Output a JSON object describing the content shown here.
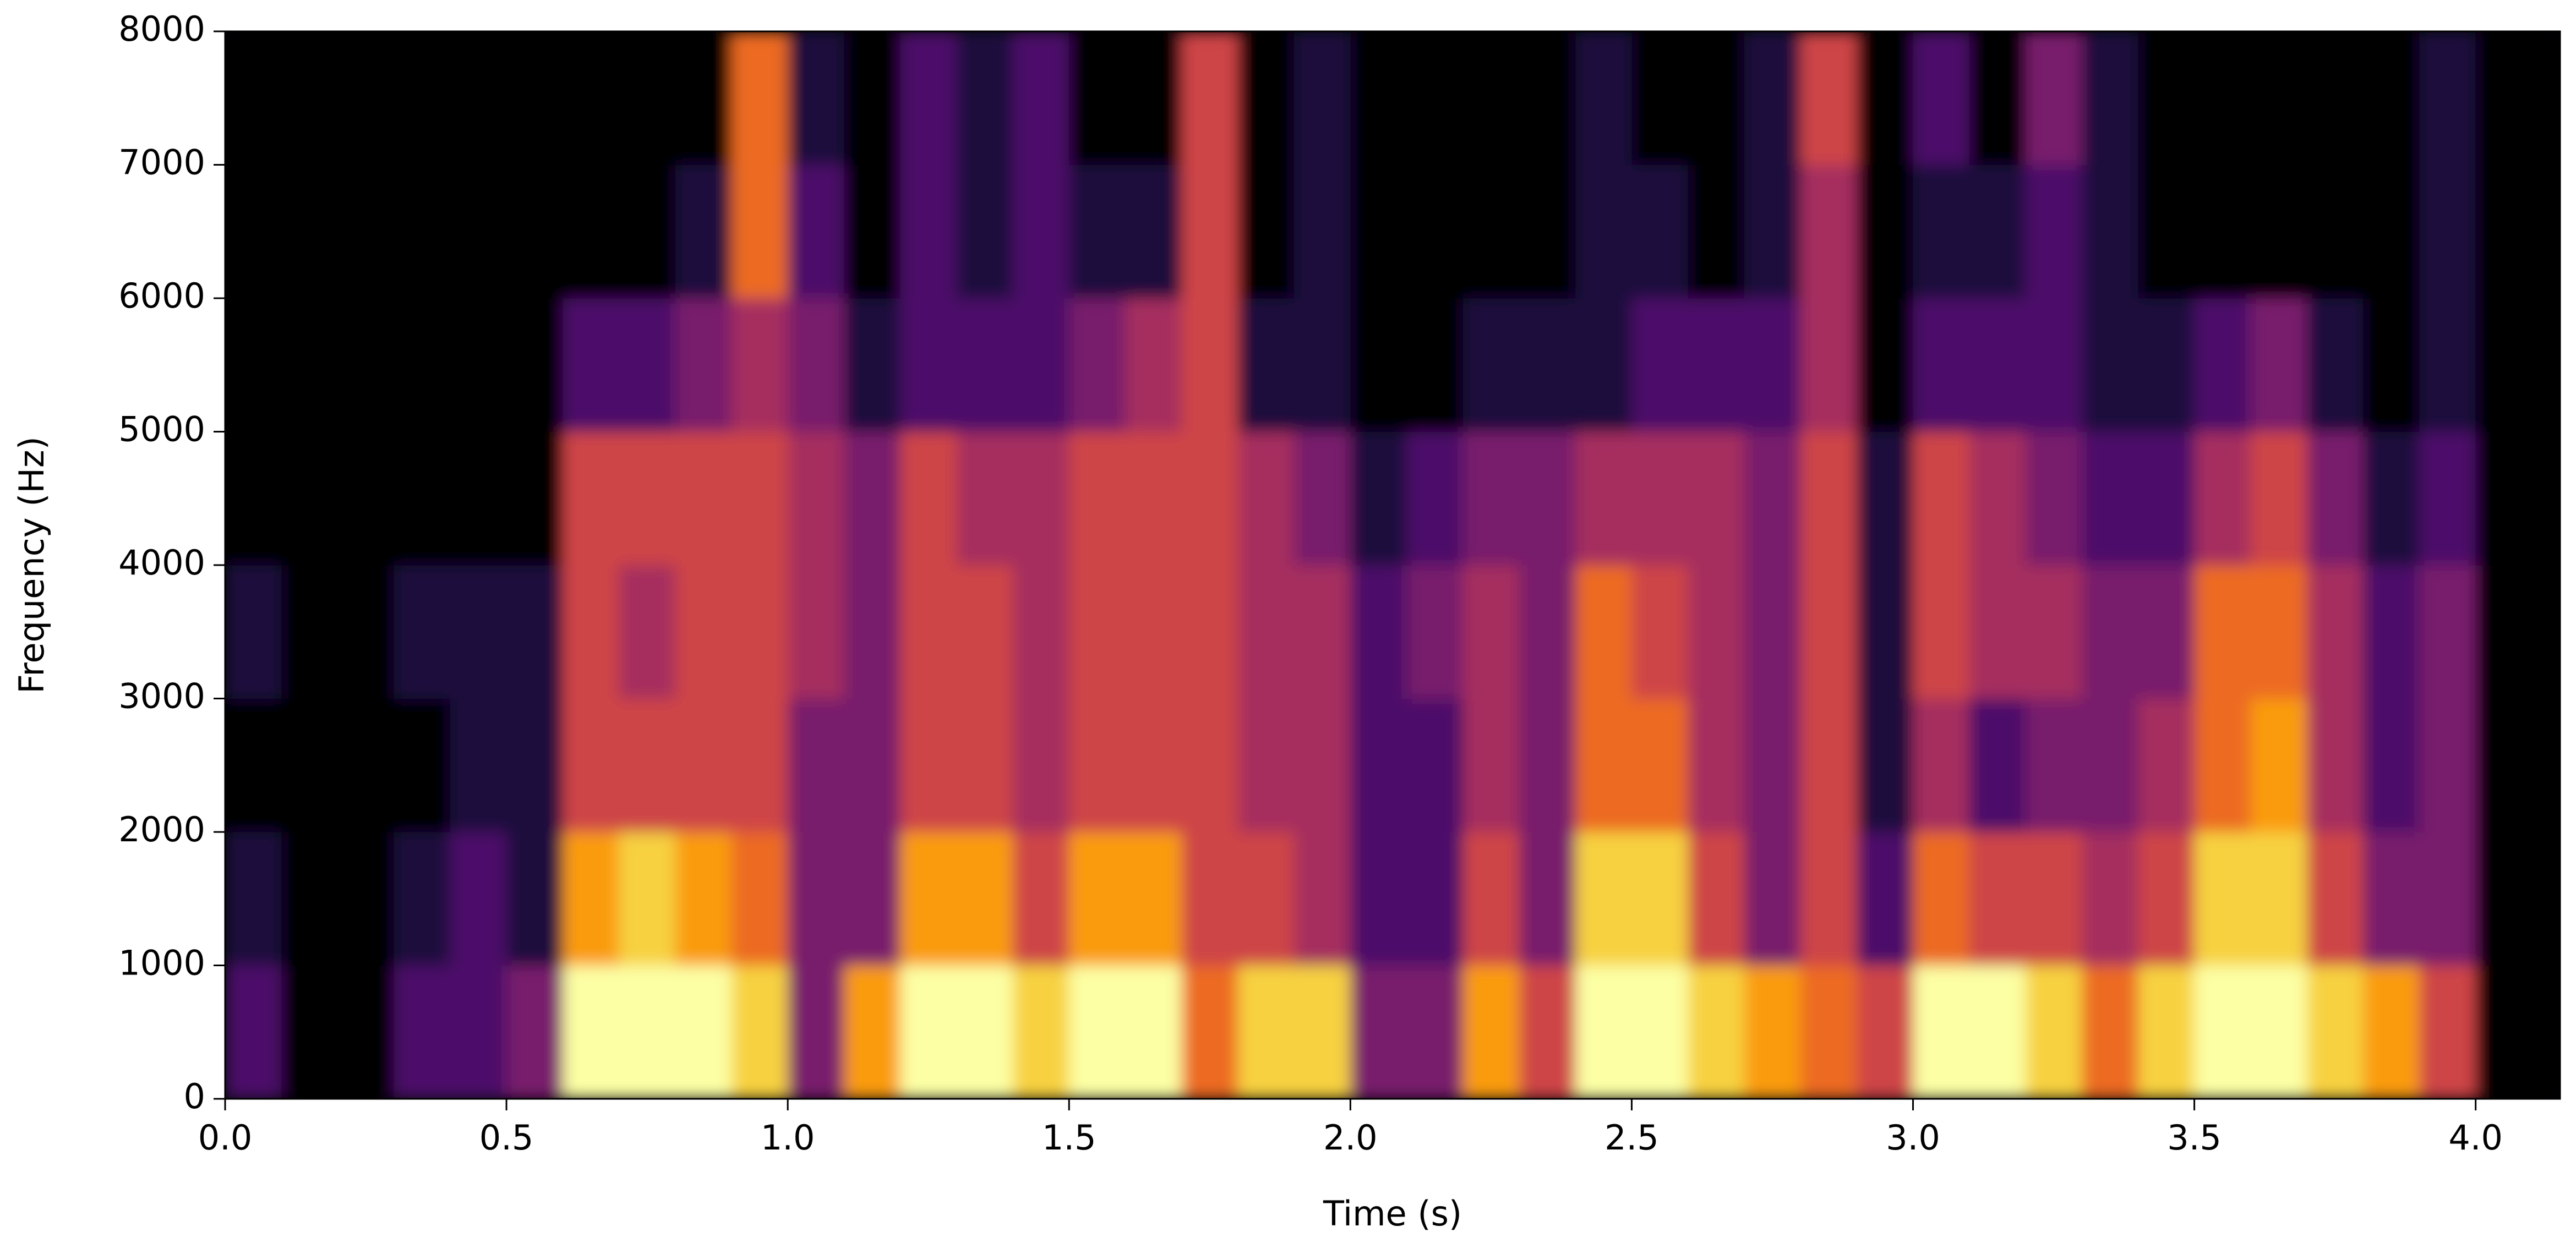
{
  "chart_data": {
    "type": "heatmap",
    "xlabel": "Time (s)",
    "ylabel": "Frequency (Hz)",
    "colormap": "inferno",
    "zlim": [
      0,
      9
    ],
    "xlim": [
      0,
      4.15
    ],
    "ylim": [
      0,
      8000
    ],
    "xticks": [
      {
        "value": 0,
        "label": "0.0"
      },
      0.5,
      {
        "value": 1,
        "label": "1.0"
      },
      1.5,
      {
        "value": 2,
        "label": "2.0"
      },
      2.5,
      {
        "value": 3,
        "label": "3.0"
      },
      3.5,
      {
        "value": 4,
        "label": "4.0"
      }
    ],
    "yticks": [
      0,
      1000,
      2000,
      3000,
      4000,
      5000,
      6000,
      7000,
      8000
    ],
    "xbins": [
      0,
      0.1,
      0.2,
      0.3,
      0.4,
      0.5,
      0.6,
      0.7,
      0.8,
      0.9,
      1.0,
      1.1,
      1.2,
      1.3,
      1.4,
      1.5,
      1.6,
      1.7,
      1.8,
      1.9,
      2.0,
      2.1,
      2.2,
      2.3,
      2.4,
      2.5,
      2.6,
      2.7,
      2.8,
      2.9,
      3.0,
      3.1,
      3.2,
      3.3,
      3.4,
      3.5,
      3.6,
      3.7,
      3.8,
      3.9,
      4.0,
      4.1,
      4.15
    ],
    "ybins": [
      0,
      1000,
      2000,
      3000,
      4000,
      5000,
      6000,
      7000,
      8000
    ],
    "z": [
      [
        2,
        0,
        0,
        2,
        2,
        3,
        9,
        9,
        9,
        8,
        3,
        7,
        9,
        9,
        8,
        9,
        9,
        6,
        8,
        8,
        3,
        3,
        7,
        5,
        9,
        9,
        8,
        7,
        6,
        5,
        9,
        9,
        8,
        6,
        8,
        9,
        9,
        8,
        7,
        5,
        0,
        0
      ],
      [
        1,
        0,
        0,
        1,
        2,
        1,
        7,
        8,
        7,
        6,
        3,
        3,
        7,
        7,
        5,
        7,
        7,
        5,
        5,
        4,
        2,
        2,
        5,
        3,
        8,
        8,
        5,
        3,
        5,
        2,
        6,
        5,
        5,
        4,
        5,
        8,
        8,
        5,
        3,
        3,
        0,
        0
      ],
      [
        0,
        0,
        0,
        0,
        1,
        1,
        5,
        5,
        5,
        5,
        3,
        3,
        5,
        5,
        4,
        5,
        5,
        5,
        4,
        4,
        2,
        2,
        4,
        3,
        6,
        6,
        4,
        3,
        5,
        1,
        4,
        2,
        3,
        3,
        4,
        6,
        7,
        4,
        2,
        3,
        0,
        0
      ],
      [
        1,
        0,
        0,
        1,
        1,
        1,
        5,
        4,
        5,
        5,
        4,
        3,
        5,
        5,
        4,
        5,
        5,
        5,
        4,
        4,
        2,
        3,
        4,
        3,
        6,
        5,
        4,
        3,
        5,
        1,
        5,
        4,
        4,
        3,
        3,
        6,
        6,
        4,
        2,
        3,
        0,
        0
      ],
      [
        0,
        0,
        0,
        0,
        0,
        0,
        5,
        5,
        5,
        5,
        4,
        3,
        5,
        4,
        4,
        5,
        5,
        5,
        4,
        3,
        1,
        2,
        3,
        3,
        4,
        4,
        4,
        3,
        5,
        1,
        5,
        4,
        3,
        2,
        2,
        4,
        5,
        3,
        1,
        2,
        0,
        0
      ],
      [
        0,
        0,
        0,
        0,
        0,
        0,
        2,
        2,
        3,
        4,
        3,
        1,
        2,
        2,
        2,
        3,
        4,
        5,
        1,
        1,
        0,
        0,
        1,
        1,
        1,
        2,
        2,
        2,
        4,
        0,
        2,
        2,
        2,
        1,
        1,
        2,
        3,
        1,
        0,
        1,
        0,
        0
      ],
      [
        0,
        0,
        0,
        0,
        0,
        0,
        0,
        0,
        1,
        6,
        2,
        0,
        2,
        1,
        2,
        1,
        1,
        5,
        0,
        1,
        0,
        0,
        0,
        0,
        1,
        1,
        0,
        1,
        4,
        0,
        1,
        1,
        2,
        1,
        0,
        0,
        0,
        0,
        0,
        1,
        0,
        0
      ],
      [
        0,
        0,
        0,
        0,
        0,
        0,
        0,
        0,
        0,
        6,
        1,
        0,
        2,
        1,
        2,
        0,
        0,
        5,
        0,
        1,
        0,
        0,
        0,
        0,
        1,
        0,
        0,
        1,
        5,
        0,
        2,
        0,
        3,
        1,
        0,
        0,
        0,
        0,
        0,
        1,
        0,
        0
      ]
    ]
  }
}
